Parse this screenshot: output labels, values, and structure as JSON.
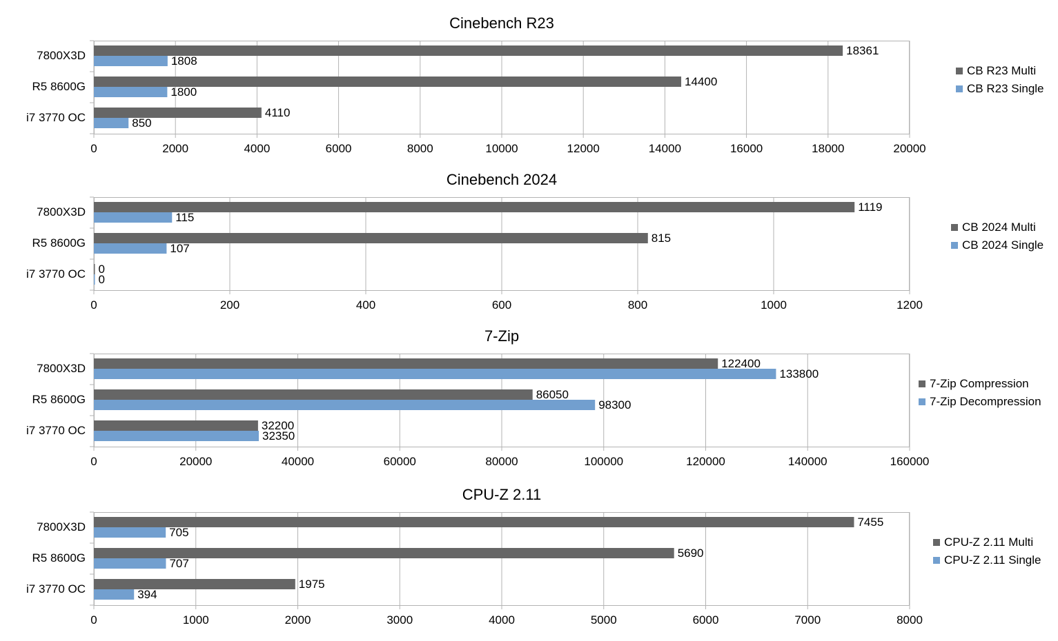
{
  "chart_data": [
    {
      "type": "bar",
      "orientation": "horizontal",
      "title": "Cinebench R23",
      "categories": [
        "7800X3D",
        "R5 8600G",
        "i7 3770 OC"
      ],
      "xlim": [
        0,
        20000
      ],
      "ticks": [
        0,
        2000,
        4000,
        6000,
        8000,
        10000,
        12000,
        14000,
        16000,
        18000,
        20000
      ],
      "grid": true,
      "legend": "right",
      "series": [
        {
          "name": "CB R23 Multi",
          "color": "#666666",
          "values": [
            18361,
            14400,
            4110
          ]
        },
        {
          "name": "CB R23 Single",
          "color": "#729fcf",
          "values": [
            1808,
            1800,
            850
          ]
        }
      ]
    },
    {
      "type": "bar",
      "orientation": "horizontal",
      "title": "Cinebench 2024",
      "categories": [
        "7800X3D",
        "R5 8600G",
        "i7 3770 OC"
      ],
      "xlim": [
        0,
        1200
      ],
      "ticks": [
        0,
        200,
        400,
        600,
        800,
        1000,
        1200
      ],
      "grid": true,
      "legend": "right",
      "series": [
        {
          "name": "CB 2024 Multi",
          "color": "#666666",
          "values": [
            1119,
            815,
            0
          ]
        },
        {
          "name": "CB 2024 Single",
          "color": "#729fcf",
          "values": [
            115,
            107,
            0
          ]
        }
      ]
    },
    {
      "type": "bar",
      "orientation": "horizontal",
      "title": "7-Zip",
      "categories": [
        "7800X3D",
        "R5 8600G",
        "i7 3770 OC"
      ],
      "xlim": [
        0,
        160000
      ],
      "ticks": [
        0,
        20000,
        40000,
        60000,
        80000,
        100000,
        120000,
        140000,
        160000
      ],
      "grid": true,
      "legend": "right",
      "series": [
        {
          "name": "7-Zip Compression",
          "color": "#666666",
          "values": [
            122400,
            86050,
            32200
          ]
        },
        {
          "name": "7-Zip Decompression",
          "color": "#729fcf",
          "values": [
            133800,
            98300,
            32350
          ]
        }
      ]
    },
    {
      "type": "bar",
      "orientation": "horizontal",
      "title": "CPU-Z 2.11",
      "categories": [
        "7800X3D",
        "R5 8600G",
        "i7 3770 OC"
      ],
      "xlim": [
        0,
        8000
      ],
      "ticks": [
        0,
        1000,
        2000,
        3000,
        4000,
        5000,
        6000,
        7000,
        8000
      ],
      "grid": true,
      "legend": "right",
      "series": [
        {
          "name": "CPU-Z 2.11 Multi",
          "color": "#666666",
          "values": [
            7455,
            5690,
            1975
          ]
        },
        {
          "name": "CPU-Z 2.11 Single",
          "color": "#729fcf",
          "values": [
            705,
            707,
            394
          ]
        }
      ]
    }
  ]
}
